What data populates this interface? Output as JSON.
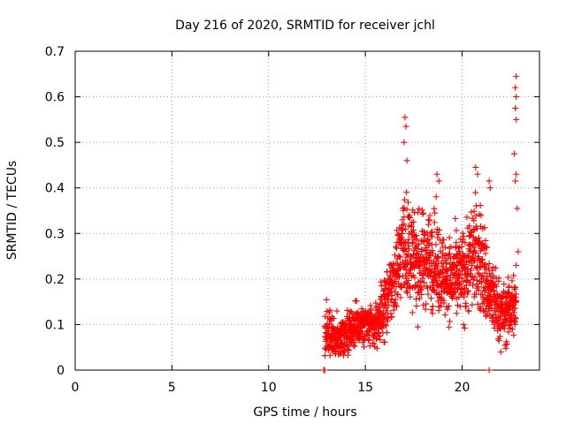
{
  "chart_data": {
    "type": "scatter",
    "title": "Day 216 of 2020, SRMTID for receiver jchl",
    "xlabel": "GPS time / hours",
    "ylabel": "SRMTID / TECUs",
    "xlim": [
      0,
      24
    ],
    "ylim": [
      0,
      0.7
    ],
    "xticks": [
      0,
      5,
      10,
      15,
      20
    ],
    "yticks": [
      0,
      0.1,
      0.2,
      0.3,
      0.4,
      0.5,
      0.6,
      0.7
    ],
    "xtick_labels": [
      "0",
      "5",
      "10",
      "15",
      "20"
    ],
    "ytick_labels": [
      "0",
      "0.1",
      "0.2",
      "0.3",
      "0.4",
      "0.5",
      "0.6",
      "0.7"
    ],
    "grid": true,
    "marker": "+",
    "series": [
      {
        "name": "SRMTID",
        "color": "#ff0000",
        "envelope_note": "dense scatter of several thousand points; approximate (time, mean, spread) profile",
        "profile": [
          [
            12.9,
            0.08,
            0.03
          ],
          [
            13.2,
            0.08,
            0.04
          ],
          [
            13.5,
            0.07,
            0.03
          ],
          [
            13.8,
            0.08,
            0.03
          ],
          [
            14.2,
            0.09,
            0.03
          ],
          [
            14.6,
            0.1,
            0.03
          ],
          [
            15.0,
            0.1,
            0.03
          ],
          [
            15.4,
            0.09,
            0.03
          ],
          [
            15.8,
            0.12,
            0.04
          ],
          [
            16.2,
            0.16,
            0.05
          ],
          [
            16.6,
            0.22,
            0.06
          ],
          [
            17.0,
            0.28,
            0.08
          ],
          [
            17.4,
            0.25,
            0.07
          ],
          [
            17.8,
            0.23,
            0.07
          ],
          [
            18.2,
            0.25,
            0.07
          ],
          [
            18.6,
            0.24,
            0.07
          ],
          [
            19.0,
            0.21,
            0.06
          ],
          [
            19.4,
            0.2,
            0.06
          ],
          [
            19.8,
            0.2,
            0.06
          ],
          [
            20.2,
            0.22,
            0.07
          ],
          [
            20.6,
            0.26,
            0.08
          ],
          [
            21.0,
            0.24,
            0.08
          ],
          [
            21.4,
            0.17,
            0.06
          ],
          [
            21.8,
            0.14,
            0.05
          ],
          [
            22.2,
            0.12,
            0.04
          ],
          [
            22.6,
            0.14,
            0.05
          ]
        ],
        "notable_points": [
          {
            "x": 17.05,
            "y": 0.555
          },
          {
            "x": 17.1,
            "y": 0.535
          },
          {
            "x": 17.0,
            "y": 0.5
          },
          {
            "x": 17.15,
            "y": 0.46
          },
          {
            "x": 18.7,
            "y": 0.43
          },
          {
            "x": 18.8,
            "y": 0.415
          },
          {
            "x": 20.7,
            "y": 0.445
          },
          {
            "x": 20.8,
            "y": 0.43
          },
          {
            "x": 21.4,
            "y": 0.415
          },
          {
            "x": 21.45,
            "y": 0.4
          },
          {
            "x": 22.8,
            "y": 0.645
          },
          {
            "x": 22.75,
            "y": 0.62
          },
          {
            "x": 22.8,
            "y": 0.6
          },
          {
            "x": 22.75,
            "y": 0.575
          },
          {
            "x": 22.8,
            "y": 0.55
          },
          {
            "x": 22.7,
            "y": 0.475
          },
          {
            "x": 22.8,
            "y": 0.43
          },
          {
            "x": 22.75,
            "y": 0.415
          },
          {
            "x": 22.85,
            "y": 0.355
          },
          {
            "x": 22.9,
            "y": 0.26
          },
          {
            "x": 22.8,
            "y": 0.23
          },
          {
            "x": 12.85,
            "y": 0.0
          },
          {
            "x": 12.9,
            "y": 0.0
          },
          {
            "x": 21.4,
            "y": 0.0
          },
          {
            "x": 13.4,
            "y": 0.04
          },
          {
            "x": 13.6,
            "y": 0.035
          },
          {
            "x": 22.0,
            "y": 0.04
          }
        ]
      }
    ]
  }
}
